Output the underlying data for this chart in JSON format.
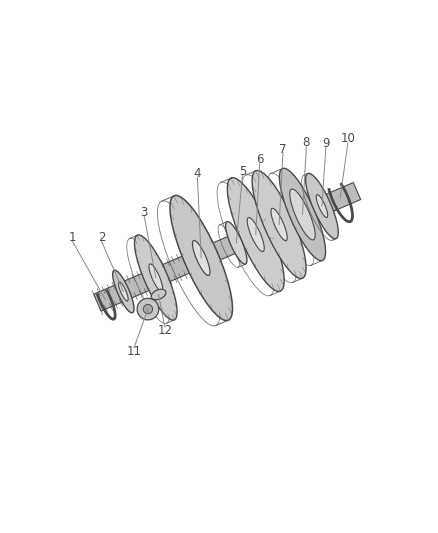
{
  "background_color": "#ffffff",
  "line_color": "#4a4a4a",
  "label_color": "#4a4a4a",
  "label_fontsize": 8.5,
  "figsize": [
    4.38,
    5.33
  ],
  "dpi": 100,
  "shaft_color": "#888888",
  "gear_fill": "#cccccc",
  "gear_edge": "#4a4a4a",
  "highlight": "#e8e8e8",
  "shadow": "#aaaaaa",
  "components": [
    {
      "id": "1",
      "type": "cring",
      "t": 0.04,
      "r": 0.028,
      "label_side": "upper"
    },
    {
      "id": "2",
      "type": "washer",
      "t": 0.1,
      "r": 0.032,
      "label_side": "upper"
    },
    {
      "id": "3",
      "type": "gear",
      "t": 0.22,
      "r": 0.075,
      "label_side": "upper"
    },
    {
      "id": "4",
      "type": "gear",
      "t": 0.38,
      "r": 0.095,
      "label_side": "upper"
    },
    {
      "id": "5",
      "type": "sleeve",
      "t": 0.52,
      "r": 0.038,
      "label_side": "upper"
    },
    {
      "id": "6",
      "type": "gear",
      "t": 0.6,
      "r": 0.088,
      "label_side": "upper"
    },
    {
      "id": "7",
      "type": "gear",
      "t": 0.69,
      "r": 0.082,
      "label_side": "upper"
    },
    {
      "id": "8",
      "type": "bearing",
      "t": 0.77,
      "r": 0.07,
      "label_side": "upper"
    },
    {
      "id": "9",
      "type": "washer",
      "t": 0.85,
      "r": 0.048,
      "label_side": "upper"
    },
    {
      "id": "10",
      "type": "cring",
      "t": 0.92,
      "r": 0.032,
      "label_side": "upper"
    },
    {
      "id": "11",
      "type": "bolt",
      "t": 0.18,
      "r": 0.015,
      "label_side": "lower"
    },
    {
      "id": "12",
      "type": "bolt",
      "t": 0.23,
      "r": 0.012,
      "label_side": "lower"
    }
  ]
}
